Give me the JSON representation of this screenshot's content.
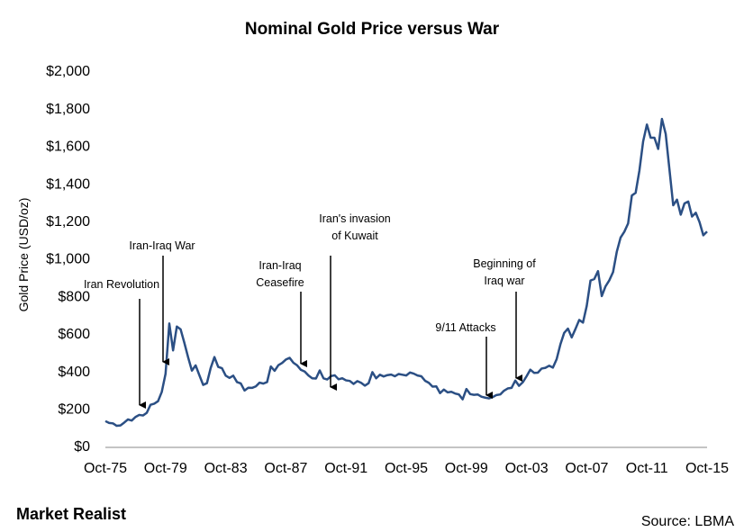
{
  "chart_data": {
    "type": "line",
    "title": "Nominal Gold Price versus War",
    "y_label": "Gold Price (USD/oz)",
    "source": "Source: LBMA",
    "brand": "Market Realist",
    "color": "#2b4f84",
    "ylim": [
      0,
      2000
    ],
    "yticks": [
      {
        "value": 0,
        "label": "$0"
      },
      {
        "value": 200,
        "label": "$200"
      },
      {
        "value": 400,
        "label": "$400"
      },
      {
        "value": 600,
        "label": "$600"
      },
      {
        "value": 800,
        "label": "$800"
      },
      {
        "value": 1000,
        "label": "$1,000"
      },
      {
        "value": 1200,
        "label": "$1,200"
      },
      {
        "value": 1400,
        "label": "$1,400"
      },
      {
        "value": 1600,
        "label": "$1,600"
      },
      {
        "value": 1800,
        "label": "$1,800"
      },
      {
        "value": 2000,
        "label": "$2,000"
      }
    ],
    "categories": [
      "Oct-75",
      null,
      null,
      null,
      null,
      null,
      null,
      null,
      null,
      null,
      null,
      null,
      null,
      null,
      null,
      null,
      "Oct-79",
      null,
      null,
      null,
      null,
      null,
      null,
      null,
      null,
      null,
      null,
      null,
      null,
      null,
      null,
      null,
      "Oct-83",
      null,
      null,
      null,
      null,
      null,
      null,
      null,
      null,
      null,
      null,
      null,
      null,
      null,
      null,
      null,
      "Oct-87",
      null,
      null,
      null,
      null,
      null,
      null,
      null,
      null,
      null,
      null,
      null,
      null,
      null,
      null,
      null,
      "Oct-91",
      null,
      null,
      null,
      null,
      null,
      null,
      null,
      null,
      null,
      null,
      null,
      null,
      null,
      null,
      null,
      "Oct-95",
      null,
      null,
      null,
      null,
      null,
      null,
      null,
      null,
      null,
      null,
      null,
      null,
      null,
      null,
      null,
      "Oct-99",
      null,
      null,
      null,
      null,
      null,
      null,
      null,
      null,
      null,
      null,
      null,
      null,
      null,
      null,
      null,
      "Oct-03",
      null,
      null,
      null,
      null,
      null,
      null,
      null,
      null,
      null,
      null,
      null,
      null,
      null,
      null,
      null,
      "Oct-07",
      null,
      null,
      null,
      null,
      null,
      null,
      null,
      null,
      null,
      null,
      null,
      null,
      null,
      null,
      null,
      "Oct-11",
      null,
      null,
      null,
      null,
      null,
      null,
      null,
      null,
      null,
      null,
      null,
      null,
      null,
      null,
      null,
      "Oct-15"
    ],
    "values": [
      140,
      130,
      128,
      115,
      117,
      132,
      149,
      143,
      162,
      173,
      170,
      184,
      227,
      233,
      246,
      296,
      392,
      660,
      517,
      644,
      629,
      557,
      480,
      409,
      437,
      384,
      333,
      342,
      423,
      481,
      429,
      422,
      382,
      370,
      382,
      348,
      341,
      303,
      318,
      317,
      325,
      345,
      340,
      348,
      431,
      408,
      438,
      450,
      468,
      477,
      451,
      437,
      413,
      404,
      383,
      368,
      367,
      410,
      368,
      362,
      380,
      384,
      363,
      368,
      357,
      354,
      338,
      353,
      344,
      329,
      342,
      401,
      368,
      387,
      378,
      385,
      388,
      379,
      391,
      387,
      383,
      399,
      393,
      383,
      379,
      355,
      344,
      324,
      325,
      289,
      308,
      293,
      296,
      287,
      282,
      256,
      311,
      284,
      280,
      282,
      270,
      265,
      261,
      268,
      279,
      282,
      302,
      314,
      317,
      356,
      328,
      347,
      379,
      414,
      397,
      398,
      420,
      424,
      435,
      425,
      470,
      549,
      610,
      633,
      586,
      631,
      679,
      665,
      754,
      889,
      897,
      939,
      806,
      858,
      890,
      934,
      1043,
      1118,
      1149,
      1193,
      1342,
      1356,
      1474,
      1630,
      1720,
      1650,
      1650,
      1590,
      1750,
      1670,
      1480,
      1290,
      1320,
      1240,
      1300,
      1310,
      1230,
      1250,
      1200,
      1130,
      1150
    ],
    "annotations": [
      [
        "Iran Revolution"
      ],
      [
        "Iran-Iraq War"
      ],
      [
        "Iran-Iraq",
        "Ceasefire"
      ],
      [
        "Iran's invasion",
        "of Kuwait"
      ],
      [
        "9/11 Attacks"
      ],
      [
        "Beginning of",
        "Iraq war"
      ]
    ]
  }
}
